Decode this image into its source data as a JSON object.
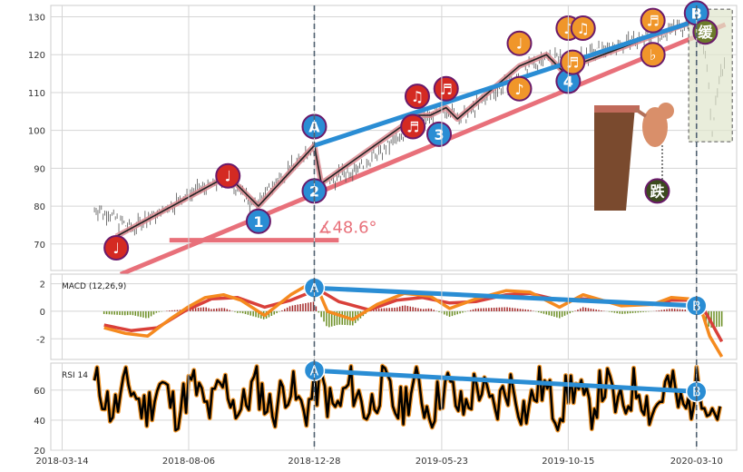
{
  "chart_data": [
    {
      "type": "line",
      "panel": "price",
      "ylim": [
        63,
        133
      ],
      "yticks": [
        70,
        80,
        90,
        100,
        110,
        120,
        130
      ],
      "xticks": [
        "2018-03-14",
        "2018-08-06",
        "2018-12-28",
        "2019-05-23",
        "2019-10-15",
        "2020-03-10"
      ],
      "grid": true,
      "angle_label": "∡48.6°",
      "price_path": [
        [
          "2018-04-20",
          79.5
        ],
        [
          "2018-05-10",
          77.5
        ],
        [
          "2018-06-01",
          74
        ],
        [
          "2018-07-01",
          78
        ],
        [
          "2018-08-15",
          84
        ],
        [
          "2018-09-20",
          87.5
        ],
        [
          "2018-10-20",
          80
        ],
        [
          "2018-11-20",
          88
        ],
        [
          "2018-12-28",
          96
        ],
        [
          "2019-01-05",
          85
        ],
        [
          "2019-02-10",
          90
        ],
        [
          "2019-03-20",
          95
        ],
        [
          "2019-04-25",
          102
        ],
        [
          "2019-05-10",
          104
        ],
        [
          "2019-05-28",
          106
        ],
        [
          "2019-06-15",
          103
        ],
        [
          "2019-07-20",
          110
        ],
        [
          "2019-08-20",
          114
        ],
        [
          "2019-09-20",
          120
        ],
        [
          "2019-10-20",
          118
        ],
        [
          "2019-12-01",
          122
        ],
        [
          "2020-01-20",
          125
        ],
        [
          "2020-03-10",
          129
        ],
        [
          "2020-03-20",
          120
        ],
        [
          "2020-03-28",
          101
        ],
        [
          "2020-04-05",
          112
        ],
        [
          "2020-04-12",
          120
        ]
      ],
      "zigzag": [
        [
          "2018-05-15",
          72
        ],
        [
          "2018-09-20",
          88
        ],
        [
          "2018-10-25",
          80
        ],
        [
          "2018-12-28",
          96
        ],
        [
          "2019-01-05",
          86
        ],
        [
          "2019-04-25",
          104
        ],
        [
          "2019-05-10",
          104
        ],
        [
          "2019-05-28",
          106
        ],
        [
          "2019-06-10",
          103
        ],
        [
          "2019-08-20",
          117
        ],
        [
          "2019-09-20",
          120
        ],
        [
          "2019-10-20",
          113
        ],
        [
          "2019-11-01",
          118
        ],
        [
          "2020-01-20",
          125
        ],
        [
          "2020-03-10",
          129
        ]
      ],
      "support_line": [
        [
          "2018-05-20",
          62
        ],
        [
          "2020-04-12",
          128
        ]
      ],
      "resistance_line": [
        [
          "2018-12-28",
          96
        ],
        [
          "2020-03-10",
          129
        ]
      ],
      "angle_baseline": [
        [
          "2018-07-15",
          71
        ],
        [
          "2019-01-25",
          71
        ]
      ],
      "markers": [
        {
          "label": "♩",
          "date": "2018-05-15",
          "value": 69,
          "fill": "#d42a22"
        },
        {
          "label": "♩",
          "date": "2018-09-20",
          "value": 88,
          "fill": "#d42a22"
        },
        {
          "label": "1",
          "date": "2018-10-25",
          "value": 76,
          "fill": "#2a8dd4"
        },
        {
          "label": "A",
          "date": "2018-12-28",
          "value": 101,
          "fill": "#2a8dd4"
        },
        {
          "label": "2",
          "date": "2018-12-28",
          "value": 84,
          "fill": "#2a8dd4"
        },
        {
          "label": "♬",
          "date": "2019-04-20",
          "value": 101,
          "fill": "#d42a22"
        },
        {
          "label": "♫",
          "date": "2019-04-25",
          "value": 109,
          "fill": "#d42a22"
        },
        {
          "label": "♬",
          "date": "2019-05-28",
          "value": 111,
          "fill": "#d42a22"
        },
        {
          "label": "3",
          "date": "2019-05-20",
          "value": 99,
          "fill": "#2a8dd4"
        },
        {
          "label": "♩",
          "date": "2019-08-20",
          "value": 123,
          "fill": "#f0962a"
        },
        {
          "label": "♪",
          "date": "2019-08-20",
          "value": 111,
          "fill": "#f0962a"
        },
        {
          "label": "♪",
          "date": "2019-10-15",
          "value": 127,
          "fill": "#f0962a"
        },
        {
          "label": "4",
          "date": "2019-10-15",
          "value": 113,
          "fill": "#2a8dd4"
        },
        {
          "label": "♬",
          "date": "2019-10-20",
          "value": 118,
          "fill": "#f0962a"
        },
        {
          "label": "♫",
          "date": "2019-11-01",
          "value": 127,
          "fill": "#f0962a"
        },
        {
          "label": "♬",
          "date": "2020-01-20",
          "value": 129,
          "fill": "#f0962a"
        },
        {
          "label": "♭",
          "date": "2020-01-20",
          "value": 120,
          "fill": "#f0962a"
        },
        {
          "label": "B",
          "date": "2020-03-10",
          "value": 131,
          "fill": "#2a8dd4"
        },
        {
          "label": "缓",
          "date": "2020-03-20",
          "value": 126,
          "fill": "#6b7a2a"
        },
        {
          "label": "跌",
          "date": "2020-01-25",
          "value": 84,
          "fill": "#3c4a1e"
        }
      ]
    },
    {
      "type": "line",
      "panel": "macd",
      "label": "MACD (12,26,9)",
      "ylim": [
        -3.5,
        2.7
      ],
      "yticks": [
        -2,
        0,
        2
      ],
      "dif": [
        [
          "2018-05-01",
          -1.2
        ],
        [
          "2018-05-25",
          -1.6
        ],
        [
          "2018-06-20",
          -1.8
        ],
        [
          "2018-07-15",
          -0.6
        ],
        [
          "2018-08-05",
          0.3
        ],
        [
          "2018-08-25",
          1.0
        ],
        [
          "2018-09-15",
          1.2
        ],
        [
          "2018-10-05",
          0.8
        ],
        [
          "2018-11-01",
          -0.3
        ],
        [
          "2018-12-01",
          1.2
        ],
        [
          "2018-12-28",
          2.2
        ],
        [
          "2019-01-12",
          0.0
        ],
        [
          "2019-02-10",
          -0.6
        ],
        [
          "2019-03-10",
          0.5
        ],
        [
          "2019-04-10",
          1.3
        ],
        [
          "2019-05-10",
          1.1
        ],
        [
          "2019-06-01",
          0.2
        ],
        [
          "2019-07-01",
          0.9
        ],
        [
          "2019-08-05",
          1.5
        ],
        [
          "2019-09-01",
          1.4
        ],
        [
          "2019-10-05",
          0.3
        ],
        [
          "2019-11-01",
          1.2
        ],
        [
          "2019-12-15",
          0.4
        ],
        [
          "2020-01-20",
          0.5
        ],
        [
          "2020-02-10",
          1.0
        ],
        [
          "2020-03-01",
          0.9
        ],
        [
          "2020-03-15",
          0.2
        ],
        [
          "2020-03-25",
          -1.8
        ],
        [
          "2020-04-08",
          -3.3
        ]
      ],
      "dea": [
        [
          "2018-05-01",
          -1.0
        ],
        [
          "2018-06-01",
          -1.4
        ],
        [
          "2018-07-01",
          -1.2
        ],
        [
          "2018-08-01",
          0.0
        ],
        [
          "2018-09-01",
          0.9
        ],
        [
          "2018-10-01",
          1.0
        ],
        [
          "2018-11-01",
          0.3
        ],
        [
          "2018-12-01",
          0.8
        ],
        [
          "2019-01-01",
          1.6
        ],
        [
          "2019-01-25",
          0.7
        ],
        [
          "2019-03-01",
          0.1
        ],
        [
          "2019-04-01",
          0.8
        ],
        [
          "2019-05-01",
          1.0
        ],
        [
          "2019-06-01",
          0.6
        ],
        [
          "2019-07-01",
          0.7
        ],
        [
          "2019-08-05",
          1.2
        ],
        [
          "2019-09-01",
          1.3
        ],
        [
          "2019-10-05",
          0.8
        ],
        [
          "2019-11-01",
          0.9
        ],
        [
          "2019-12-15",
          0.6
        ],
        [
          "2020-01-20",
          0.5
        ],
        [
          "2020-02-10",
          0.8
        ],
        [
          "2020-03-01",
          0.8
        ],
        [
          "2020-03-15",
          0.5
        ],
        [
          "2020-03-25",
          -0.6
        ],
        [
          "2020-04-08",
          -2.2
        ]
      ],
      "divergence_line": [
        [
          "2018-12-28",
          1.7
        ],
        [
          "2020-03-10",
          0.4
        ]
      ],
      "points": [
        {
          "label": "A",
          "date": "2018-12-28",
          "value": 1.7
        },
        {
          "label": "B",
          "date": "2020-03-10",
          "value": 0.4
        }
      ]
    },
    {
      "type": "line",
      "panel": "rsi",
      "label": "RSI 14",
      "ylim": [
        20,
        78
      ],
      "yticks": [
        20,
        40,
        60
      ],
      "divergence_line": [
        [
          "2018-12-28",
          73
        ],
        [
          "2020-03-10",
          59
        ]
      ],
      "points": [
        {
          "label": "A",
          "date": "2018-12-28",
          "value": 73
        },
        {
          "label": "B",
          "date": "2020-03-10",
          "value": 59
        }
      ]
    }
  ],
  "colors": {
    "blue": "#2a8dd4",
    "red": "#d42a22",
    "pink": "#e8707a",
    "orange": "#f0962a",
    "macd_red": "#d9403a",
    "macd_orange": "#f58a1f",
    "hist_pos": "#a52a2a",
    "hist_neg": "#6b8e23",
    "grid": "#d5d5d5"
  }
}
